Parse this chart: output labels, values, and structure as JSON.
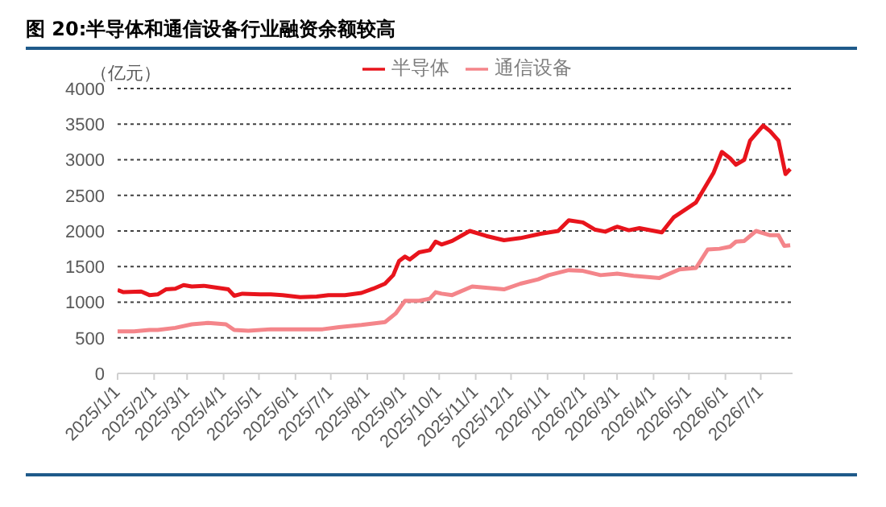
{
  "chart_data": {
    "type": "line",
    "title": "图 20:半导体和通信设备行业融资余额较高",
    "ylabel": "（亿元）",
    "xlim": [
      "2025-01-01",
      "2026-07-28"
    ],
    "xticks": [
      {
        "value": "2025-01-01",
        "label": "2025/1/1"
      },
      {
        "value": "2025-02-01",
        "label": "2025/2/1"
      },
      {
        "value": "2025-03-01",
        "label": "2025/3/1"
      },
      {
        "value": "2025-04-01",
        "label": "2025/4/1"
      },
      {
        "value": "2025-05-01",
        "label": "2025/5/1"
      },
      {
        "value": "2025-06-01",
        "label": "2025/6/1"
      },
      {
        "value": "2025-07-01",
        "label": "2025/7/1"
      },
      {
        "value": "2025-08-01",
        "label": "2025/8/1"
      },
      {
        "value": "2025-09-01",
        "label": "2025/9/1"
      },
      {
        "value": "2025-10-01",
        "label": "2025/10/1"
      },
      {
        "value": "2025-11-01",
        "label": "2025/11/1"
      },
      {
        "value": "2025-12-01",
        "label": "2025/12/1"
      },
      {
        "value": "2026-01-01",
        "label": "2026/1/1"
      },
      {
        "value": "2026-02-01",
        "label": "2026/2/1"
      },
      {
        "value": "2026-03-01",
        "label": "2026/3/1"
      },
      {
        "value": "2026-04-01",
        "label": "2026/4/1"
      },
      {
        "value": "2026-05-01",
        "label": "2026/5/1"
      },
      {
        "value": "2026-06-01",
        "label": "2026/6/1"
      },
      {
        "value": "2026-07-01",
        "label": "2026/7/1"
      }
    ],
    "ylim": [
      0,
      4000
    ],
    "yticks": [
      0,
      500,
      1000,
      1500,
      2000,
      2500,
      3000,
      3500,
      4000
    ],
    "grid": "y",
    "legend": "top",
    "marker": "none",
    "line_style": "solid",
    "series": [
      {
        "name": "半导体",
        "color": "#e8141c",
        "x": [
          "2025-01-01",
          "2025-01-06",
          "2025-01-21",
          "2025-01-28",
          "2025-02-04",
          "2025-02-11",
          "2025-02-19",
          "2025-02-26",
          "2025-03-05",
          "2025-03-15",
          "2025-03-24",
          "2025-04-05",
          "2025-04-10",
          "2025-04-17",
          "2025-05-02",
          "2025-05-11",
          "2025-05-21",
          "2025-06-05",
          "2025-06-19",
          "2025-06-29",
          "2025-07-13",
          "2025-07-27",
          "2025-08-06",
          "2025-08-16",
          "2025-08-23",
          "2025-08-28",
          "2025-09-02",
          "2025-09-06",
          "2025-09-14",
          "2025-09-23",
          "2025-09-28",
          "2025-10-03",
          "2025-10-12",
          "2025-10-27",
          "2025-11-10",
          "2025-11-25",
          "2025-12-09",
          "2025-12-26",
          "2026-01-10",
          "2026-01-19",
          "2026-01-31",
          "2026-02-10",
          "2026-02-19",
          "2026-03-01",
          "2026-03-11",
          "2026-03-20",
          "2026-04-08",
          "2026-04-18",
          "2026-05-07",
          "2026-05-22",
          "2026-05-29",
          "2026-06-05",
          "2026-06-10",
          "2026-06-17",
          "2026-06-22",
          "2026-07-03",
          "2026-07-09",
          "2026-07-16",
          "2026-07-22",
          "2026-07-26"
        ],
        "values": [
          1170,
          1140,
          1150,
          1100,
          1110,
          1180,
          1190,
          1240,
          1220,
          1230,
          1210,
          1180,
          1090,
          1120,
          1110,
          1110,
          1100,
          1070,
          1080,
          1100,
          1100,
          1130,
          1190,
          1260,
          1380,
          1580,
          1640,
          1600,
          1700,
          1730,
          1850,
          1810,
          1860,
          2000,
          1930,
          1870,
          1900,
          1960,
          2000,
          2150,
          2120,
          2020,
          1990,
          2060,
          2010,
          2040,
          1980,
          2190,
          2400,
          2820,
          3110,
          3020,
          2930,
          3000,
          3270,
          3480,
          3400,
          3270,
          2800,
          2870
        ]
      },
      {
        "name": "通信设备",
        "color": "#f4858a",
        "x": [
          "2025-01-01",
          "2025-01-15",
          "2025-01-28",
          "2025-02-04",
          "2025-02-19",
          "2025-03-05",
          "2025-03-19",
          "2025-04-03",
          "2025-04-10",
          "2025-04-22",
          "2025-05-11",
          "2025-05-31",
          "2025-06-24",
          "2025-07-08",
          "2025-07-27",
          "2025-08-16",
          "2025-08-25",
          "2025-09-02",
          "2025-09-14",
          "2025-09-23",
          "2025-09-28",
          "2025-10-03",
          "2025-10-12",
          "2025-10-29",
          "2025-11-25",
          "2025-12-09",
          "2025-12-24",
          "2026-01-02",
          "2026-01-19",
          "2026-01-31",
          "2026-02-15",
          "2026-03-01",
          "2026-03-15",
          "2026-04-06",
          "2026-04-23",
          "2026-05-07",
          "2026-05-17",
          "2026-05-27",
          "2026-06-05",
          "2026-06-10",
          "2026-06-17",
          "2026-06-27",
          "2026-07-09",
          "2026-07-16",
          "2026-07-21",
          "2026-07-26"
        ],
        "values": [
          590,
          590,
          610,
          610,
          640,
          690,
          710,
          690,
          610,
          600,
          620,
          620,
          620,
          650,
          680,
          720,
          840,
          1020,
          1020,
          1050,
          1140,
          1120,
          1100,
          1220,
          1180,
          1260,
          1320,
          1380,
          1450,
          1440,
          1380,
          1400,
          1370,
          1340,
          1460,
          1480,
          1740,
          1750,
          1780,
          1850,
          1860,
          2000,
          1940,
          1940,
          1790,
          1800
        ]
      }
    ]
  }
}
